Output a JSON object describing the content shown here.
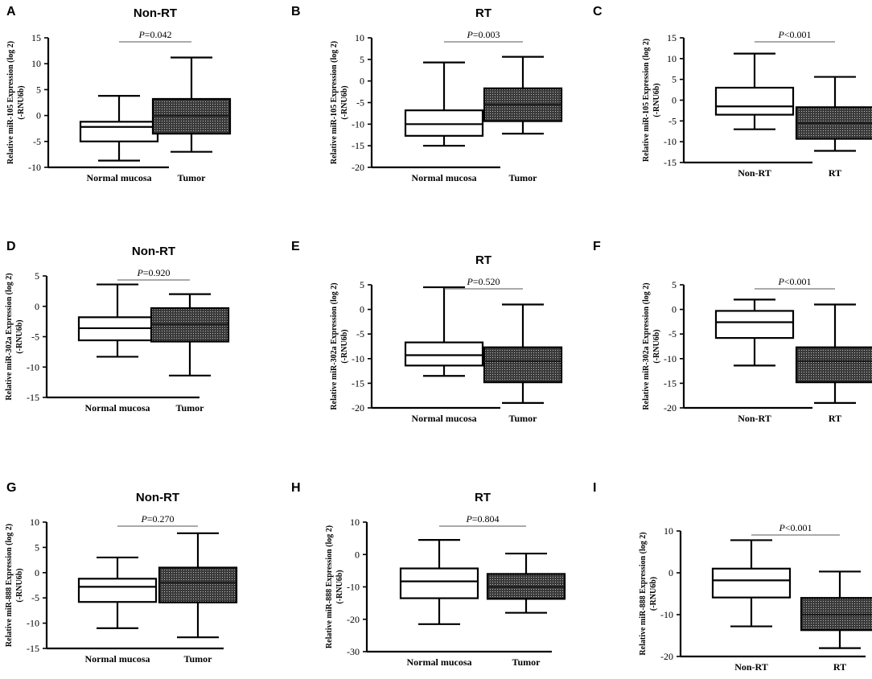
{
  "chart_data": [
    {
      "type": "box",
      "panel": "A",
      "title": "Non-RT",
      "ylabel": [
        "Relative miR-105 Expression (log 2)",
        "(-RNU6b)"
      ],
      "ylim": [
        -10,
        15
      ],
      "ystep": 5,
      "categories": [
        "Normal mucosa",
        "Tumor"
      ],
      "boxes": [
        {
          "min": -8.7,
          "q1": -5.0,
          "median": -2.2,
          "q3": -1.2,
          "max": 3.8,
          "fill": "white"
        },
        {
          "min": -7.0,
          "q1": -3.5,
          "median": 0.0,
          "q3": 3.2,
          "max": 11.2,
          "fill": "dotted"
        }
      ],
      "pvalue": "=0.042"
    },
    {
      "type": "box",
      "panel": "B",
      "title": "RT",
      "ylabel": [
        "Relative miR-105 Expression (log 2)",
        "(-RNU6b)"
      ],
      "ylim": [
        -20,
        10
      ],
      "ystep": 5,
      "categories": [
        "Normal mucosa",
        "Tumor"
      ],
      "boxes": [
        {
          "min": -15.0,
          "q1": -12.7,
          "median": -10.0,
          "q3": -6.8,
          "max": 4.3,
          "fill": "white"
        },
        {
          "min": -12.2,
          "q1": -9.3,
          "median": -5.5,
          "q3": -1.7,
          "max": 5.6,
          "fill": "dotted"
        }
      ],
      "pvalue": "=0.003"
    },
    {
      "type": "box",
      "panel": "C",
      "title": "",
      "ylabel": [
        "Relative miR-105 Expression (log 2)",
        "(-RNU6b)"
      ],
      "ylim": [
        -15,
        15
      ],
      "ystep": 5,
      "categories": [
        "Non-RT",
        "RT"
      ],
      "boxes": [
        {
          "min": -7.0,
          "q1": -3.5,
          "median": -1.5,
          "q3": 3.0,
          "max": 11.2,
          "fill": "white"
        },
        {
          "min": -12.2,
          "q1": -9.3,
          "median": -5.5,
          "q3": -1.7,
          "max": 5.6,
          "fill": "dotted"
        }
      ],
      "pvalue": "<0.001"
    },
    {
      "type": "box",
      "panel": "D",
      "title": "Non-RT",
      "ylabel": [
        "Relative miR-302a Expression (log 2)",
        "(-RNU6b)"
      ],
      "ylim": [
        -15,
        5
      ],
      "ystep": 5,
      "categories": [
        "Normal mucosa",
        "Tumor"
      ],
      "boxes": [
        {
          "min": -8.3,
          "q1": -5.6,
          "median": -3.6,
          "q3": -1.8,
          "max": 3.6,
          "fill": "white"
        },
        {
          "min": -11.4,
          "q1": -5.8,
          "median": -3.0,
          "q3": -0.3,
          "max": 2.0,
          "fill": "dotted"
        }
      ],
      "pvalue": "=0.920"
    },
    {
      "type": "box",
      "panel": "E",
      "title": "RT",
      "ylabel": [
        "Relative miR-302a Expression (log 2)",
        "(-RNU6b)"
      ],
      "ylim": [
        -20,
        5
      ],
      "ystep": 5,
      "categories": [
        "Normal mucosa",
        "Tumor"
      ],
      "boxes": [
        {
          "min": -13.5,
          "q1": -11.4,
          "median": -9.3,
          "q3": -6.7,
          "max": 4.5,
          "fill": "white"
        },
        {
          "min": -19.0,
          "q1": -14.8,
          "median": -10.5,
          "q3": -7.7,
          "max": 1.0,
          "fill": "dotted"
        }
      ],
      "pvalue": "=0.520"
    },
    {
      "type": "box",
      "panel": "F",
      "title": "",
      "ylabel": [
        "Relative miR-302a Expression (log 2)",
        "(-RNU6b)"
      ],
      "ylim": [
        -20,
        5
      ],
      "ystep": 5,
      "categories": [
        "Non-RT",
        "RT"
      ],
      "boxes": [
        {
          "min": -11.4,
          "q1": -5.8,
          "median": -2.6,
          "q3": -0.3,
          "max": 2.0,
          "fill": "white"
        },
        {
          "min": -19.0,
          "q1": -14.8,
          "median": -10.5,
          "q3": -7.7,
          "max": 1.0,
          "fill": "dotted"
        }
      ],
      "pvalue": "<0.001"
    },
    {
      "type": "box",
      "panel": "G",
      "title": "Non-RT",
      "ylabel": [
        "Relative miR-888 Expression (log 2)",
        "(-RNU6b)"
      ],
      "ylim": [
        -15,
        10
      ],
      "ystep": 5,
      "categories": [
        "Normal mucosa",
        "Tumor"
      ],
      "boxes": [
        {
          "min": -11.0,
          "q1": -5.8,
          "median": -2.8,
          "q3": -1.2,
          "max": 3.0,
          "fill": "white"
        },
        {
          "min": -12.8,
          "q1": -5.9,
          "median": -2.0,
          "q3": 1.0,
          "max": 7.8,
          "fill": "dotted"
        }
      ],
      "pvalue": "=0.270"
    },
    {
      "type": "box",
      "panel": "H",
      "title": "RT",
      "ylabel": [
        "Relative miR-888 Expression (log 2)",
        "(-RNU6b)"
      ],
      "ylim": [
        -30,
        10
      ],
      "ystep": 10,
      "categories": [
        "Normal mucosa",
        "Tumor"
      ],
      "boxes": [
        {
          "min": -21.5,
          "q1": -13.5,
          "median": -8.3,
          "q3": -4.3,
          "max": 4.5,
          "fill": "white"
        },
        {
          "min": -18.0,
          "q1": -13.7,
          "median": -10.0,
          "q3": -6.0,
          "max": 0.3,
          "fill": "dotted"
        }
      ],
      "pvalue": "=0.804"
    },
    {
      "type": "box",
      "panel": "I",
      "title": "",
      "ylabel": [
        "Relative miR-888 Expression (log 2)",
        "(-RNU6b)"
      ],
      "ylim": [
        -20,
        10
      ],
      "ystep": 10,
      "categories": [
        "Non-RT",
        "RT"
      ],
      "boxes": [
        {
          "min": -12.8,
          "q1": -5.9,
          "median": -1.8,
          "q3": 1.0,
          "max": 7.8,
          "fill": "white"
        },
        {
          "min": -18.0,
          "q1": -13.7,
          "median": -10.0,
          "q3": -6.0,
          "max": 0.3,
          "fill": "dotted"
        }
      ],
      "pvalue": "<0.001"
    }
  ]
}
